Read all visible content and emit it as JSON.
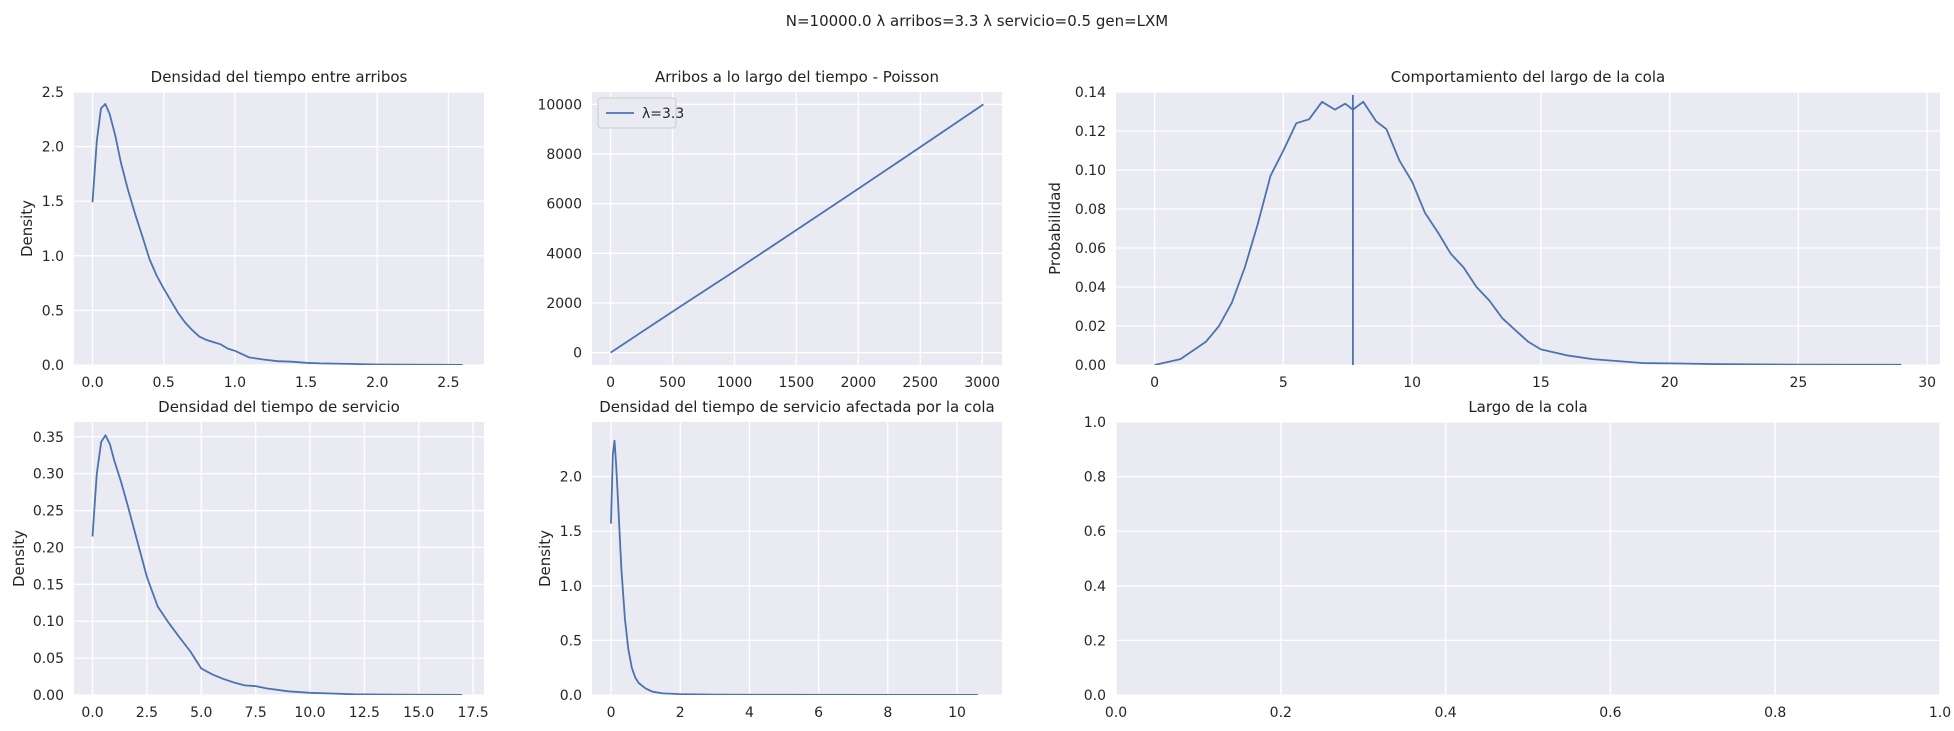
{
  "suptitle": "N=10000.0  λ arribos=3.3  λ servicio=0.5 gen=LXM",
  "colors": {
    "line": "#4c72b0",
    "axes_bg": "#eaeaf2",
    "grid": "#ffffff",
    "text": "#262626"
  },
  "chart_data": [
    {
      "type": "line",
      "title": "Densidad del tiempo entre arribos",
      "xlabel": "",
      "ylabel": "Density",
      "xlim": [
        -0.13,
        2.75
      ],
      "ylim": [
        0,
        2.5
      ],
      "xticks": [
        0.0,
        0.5,
        1.0,
        1.5,
        2.0,
        2.5
      ],
      "xtick_labels": [
        "0.0",
        "0.5",
        "1.0",
        "1.5",
        "2.0",
        "2.5"
      ],
      "yticks": [
        0.0,
        0.5,
        1.0,
        1.5,
        2.0,
        2.5
      ],
      "ytick_labels": [
        "0.0",
        "0.5",
        "1.0",
        "1.5",
        "2.0",
        "2.5"
      ],
      "grid": true,
      "series": [
        {
          "x": [
            0,
            0.03,
            0.06,
            0.09,
            0.12,
            0.16,
            0.2,
            0.25,
            0.3,
            0.35,
            0.4,
            0.45,
            0.5,
            0.55,
            0.6,
            0.65,
            0.7,
            0.75,
            0.8,
            0.85,
            0.9,
            0.95,
            1.0,
            1.05,
            1.1,
            1.2,
            1.3,
            1.4,
            1.5,
            1.6,
            1.8,
            2.0,
            2.2,
            2.4,
            2.6
          ],
          "y": [
            1.49,
            2.05,
            2.35,
            2.39,
            2.3,
            2.1,
            1.85,
            1.6,
            1.38,
            1.18,
            0.97,
            0.82,
            0.7,
            0.59,
            0.48,
            0.39,
            0.32,
            0.26,
            0.23,
            0.21,
            0.19,
            0.15,
            0.13,
            0.1,
            0.07,
            0.05,
            0.035,
            0.03,
            0.02,
            0.015,
            0.01,
            0.005,
            0.003,
            0.002,
            0.001
          ]
        }
      ]
    },
    {
      "type": "line",
      "title": "Arribos a lo largo del tiempo - Poisson",
      "xlabel": "",
      "ylabel": "",
      "xlim": [
        -150,
        3160
      ],
      "ylim": [
        -500,
        10500
      ],
      "xticks": [
        0,
        500,
        1000,
        1500,
        2000,
        2500,
        3000
      ],
      "xtick_labels": [
        "0",
        "500",
        "1000",
        "1500",
        "2000",
        "2500",
        "3000"
      ],
      "yticks": [
        0,
        2000,
        4000,
        6000,
        8000,
        10000
      ],
      "ytick_labels": [
        "0",
        "2000",
        "4000",
        "6000",
        "8000",
        "10000"
      ],
      "grid": true,
      "legend": {
        "placement": "upper-left",
        "entries": [
          "λ=3.3"
        ]
      },
      "series": [
        {
          "name": "λ=3.3",
          "x": [
            0,
            500,
            1000,
            1500,
            2000,
            2500,
            3010
          ],
          "y": [
            0,
            1650,
            3280,
            4940,
            6600,
            8280,
            10000
          ]
        }
      ]
    },
    {
      "type": "line",
      "title": "Comportamiento del largo de la cola",
      "xlabel": "",
      "ylabel": "Probabilidad",
      "xlim": [
        -1.5,
        30.5
      ],
      "ylim": [
        0,
        0.14
      ],
      "xticks": [
        0,
        5,
        10,
        15,
        20,
        25,
        30
      ],
      "xtick_labels": [
        "0",
        "5",
        "10",
        "15",
        "20",
        "25",
        "30"
      ],
      "yticks": [
        0.0,
        0.02,
        0.04,
        0.06,
        0.08,
        0.1,
        0.12,
        0.14
      ],
      "ytick_labels": [
        "0.00",
        "0.02",
        "0.04",
        "0.06",
        "0.08",
        "0.10",
        "0.12",
        "0.14"
      ],
      "grid": true,
      "vline_x": 7.7,
      "series": [
        {
          "x": [
            0,
            1,
            2,
            2.5,
            3,
            3.5,
            4,
            4.5,
            5,
            5.5,
            6,
            6.5,
            7,
            7.4,
            7.7,
            8.1,
            8.6,
            9,
            9.5,
            10,
            10.5,
            11,
            11.5,
            12,
            12.5,
            13,
            13.5,
            14,
            14.5,
            15,
            16,
            17,
            18,
            19,
            20,
            22,
            25,
            29
          ],
          "y": [
            0.0,
            0.003,
            0.012,
            0.02,
            0.032,
            0.05,
            0.072,
            0.097,
            0.11,
            0.124,
            0.126,
            0.135,
            0.131,
            0.134,
            0.131,
            0.135,
            0.125,
            0.121,
            0.105,
            0.094,
            0.078,
            0.068,
            0.057,
            0.05,
            0.04,
            0.033,
            0.024,
            0.018,
            0.012,
            0.008,
            0.005,
            0.003,
            0.002,
            0.001,
            0.0008,
            0.0004,
            0.0002,
            0.0001
          ]
        }
      ]
    },
    {
      "type": "line",
      "title": "Densidad del tiempo de servicio",
      "xlabel": "",
      "ylabel": "Density",
      "xlim": [
        -0.85,
        18.0
      ],
      "ylim": [
        0,
        0.37
      ],
      "xticks": [
        0.0,
        2.5,
        5.0,
        7.5,
        10.0,
        12.5,
        15.0,
        17.5
      ],
      "xtick_labels": [
        "0.0",
        "2.5",
        "5.0",
        "7.5",
        "10.0",
        "12.5",
        "15.0",
        "17.5"
      ],
      "yticks": [
        0.0,
        0.05,
        0.1,
        0.15,
        0.2,
        0.25,
        0.3,
        0.35
      ],
      "ytick_labels": [
        "0.00",
        "0.05",
        "0.10",
        "0.15",
        "0.20",
        "0.25",
        "0.30",
        "0.35"
      ],
      "grid": true,
      "series": [
        {
          "x": [
            0,
            0.2,
            0.4,
            0.6,
            0.8,
            1.0,
            1.3,
            1.6,
            2.0,
            2.5,
            3.0,
            3.5,
            4.0,
            4.5,
            5.0,
            5.5,
            6.0,
            6.5,
            7.0,
            7.5,
            8.0,
            9.0,
            10.0,
            11.0,
            12.0,
            14.0,
            17.0
          ],
          "y": [
            0.215,
            0.3,
            0.343,
            0.352,
            0.34,
            0.318,
            0.29,
            0.259,
            0.215,
            0.16,
            0.12,
            0.098,
            0.078,
            0.059,
            0.036,
            0.028,
            0.022,
            0.017,
            0.013,
            0.012,
            0.009,
            0.005,
            0.003,
            0.002,
            0.001,
            0.0005,
            0.0002
          ]
        }
      ]
    },
    {
      "type": "line",
      "title": "Densidad del tiempo de servicio afectada por la cola",
      "xlabel": "",
      "ylabel": "Density",
      "xlim": [
        -0.55,
        11.3
      ],
      "ylim": [
        0,
        2.5
      ],
      "xticks": [
        0,
        2,
        4,
        6,
        8,
        10
      ],
      "xtick_labels": [
        "0",
        "2",
        "4",
        "6",
        "8",
        "10"
      ],
      "yticks": [
        0.0,
        0.5,
        1.0,
        1.5,
        2.0
      ],
      "ytick_labels": [
        "0.0",
        "0.5",
        "1.0",
        "1.5",
        "2.0"
      ],
      "grid": true,
      "series": [
        {
          "x": [
            0,
            0.05,
            0.1,
            0.15,
            0.2,
            0.3,
            0.4,
            0.5,
            0.6,
            0.7,
            0.8,
            1.0,
            1.2,
            1.5,
            2.0,
            3.0,
            5.0,
            8.0,
            10.6
          ],
          "y": [
            1.57,
            2.2,
            2.33,
            2.1,
            1.8,
            1.15,
            0.7,
            0.42,
            0.25,
            0.16,
            0.11,
            0.06,
            0.03,
            0.015,
            0.008,
            0.004,
            0.002,
            0.001,
            0.0005
          ]
        }
      ]
    },
    {
      "type": "line",
      "title": "Largo de la cola",
      "xlabel": "",
      "ylabel": "",
      "xlim": [
        0,
        1
      ],
      "ylim": [
        0,
        1
      ],
      "xticks": [
        0.0,
        0.2,
        0.4,
        0.6,
        0.8,
        1.0
      ],
      "xtick_labels": [
        "0.0",
        "0.2",
        "0.4",
        "0.6",
        "0.8",
        "1.0"
      ],
      "yticks": [
        0.0,
        0.2,
        0.4,
        0.6,
        0.8,
        1.0
      ],
      "ytick_labels": [
        "0.0",
        "0.2",
        "0.4",
        "0.6",
        "0.8",
        "1.0"
      ],
      "grid": true,
      "series": []
    }
  ]
}
